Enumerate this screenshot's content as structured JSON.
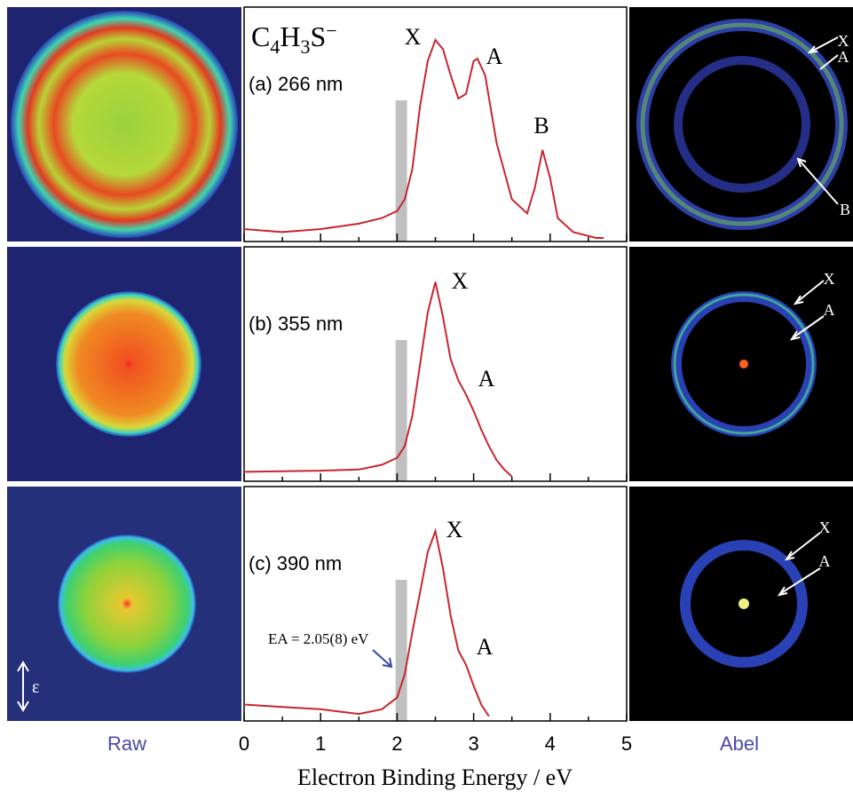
{
  "title_parts": [
    "C",
    "4",
    "H",
    "3",
    "S",
    "−"
  ],
  "raw_label": "Raw",
  "abel_label": "Abel",
  "x_label": "Electron Binding Energy / eV",
  "ea_annotation": "EA = 2.05(8) eV",
  "polarization_label": "ε",
  "chart_data": [
    {
      "type": "line",
      "title": "(a) 266 nm",
      "color": "#c8262c",
      "xlim": [
        0,
        5
      ],
      "ylim": [
        0,
        1
      ],
      "xticks": [
        0,
        1,
        2,
        3,
        4,
        5
      ],
      "minor_xticks": [
        0.5,
        1.5,
        2.5,
        3.5,
        4.5
      ],
      "band": [
        1.98,
        2.13
      ],
      "x": [
        0,
        0.5,
        1.0,
        1.5,
        1.8,
        2.0,
        2.1,
        2.2,
        2.3,
        2.4,
        2.5,
        2.6,
        2.7,
        2.8,
        2.9,
        3.0,
        3.05,
        3.15,
        3.3,
        3.5,
        3.7,
        3.8,
        3.9,
        4.0,
        4.1,
        4.3,
        4.6,
        4.7
      ],
      "values": [
        0.053,
        0.04,
        0.053,
        0.076,
        0.1,
        0.13,
        0.18,
        0.31,
        0.58,
        0.77,
        0.86,
        0.82,
        0.71,
        0.61,
        0.63,
        0.77,
        0.78,
        0.71,
        0.42,
        0.18,
        0.12,
        0.23,
        0.39,
        0.27,
        0.1,
        0.04,
        0.015,
        0.015
      ],
      "peak_labels": [
        "X",
        "A",
        "B"
      ],
      "image_labels": [
        "X",
        "A",
        "B"
      ]
    },
    {
      "type": "line",
      "title": "(b) 355 nm",
      "color": "#c8262c",
      "xlim": [
        0,
        5
      ],
      "ylim": [
        0,
        1
      ],
      "xticks": [
        0,
        1,
        2,
        3,
        4,
        5
      ],
      "minor_xticks": [
        0.5,
        1.5,
        2.5,
        3.5,
        4.5
      ],
      "band": [
        1.98,
        2.13
      ],
      "x": [
        0,
        1.0,
        1.5,
        1.8,
        2.0,
        2.1,
        2.2,
        2.3,
        2.4,
        2.5,
        2.6,
        2.7,
        2.8,
        2.9,
        3.0,
        3.1,
        3.2,
        3.3,
        3.4,
        3.5
      ],
      "values": [
        0.04,
        0.045,
        0.05,
        0.07,
        0.1,
        0.15,
        0.28,
        0.5,
        0.72,
        0.85,
        0.7,
        0.52,
        0.43,
        0.37,
        0.3,
        0.22,
        0.15,
        0.09,
        0.05,
        0.02
      ],
      "peak_labels": [
        "X",
        "A"
      ],
      "image_labels": [
        "X",
        "A"
      ]
    },
    {
      "type": "line",
      "title": "(c) 390 nm",
      "color": "#c8262c",
      "xlim": [
        0,
        5
      ],
      "ylim": [
        0,
        1
      ],
      "xticks": [
        0,
        1,
        2,
        3,
        4,
        5
      ],
      "minor_xticks": [
        0.5,
        1.5,
        2.5,
        3.5,
        4.5
      ],
      "band": [
        1.98,
        2.13
      ],
      "x": [
        0,
        0.5,
        1.0,
        1.5,
        1.8,
        2.0,
        2.1,
        2.2,
        2.3,
        2.4,
        2.5,
        2.6,
        2.7,
        2.8,
        2.9,
        3.0,
        3.1,
        3.2
      ],
      "values": [
        0.07,
        0.06,
        0.05,
        0.03,
        0.05,
        0.1,
        0.2,
        0.38,
        0.55,
        0.72,
        0.81,
        0.65,
        0.45,
        0.3,
        0.24,
        0.15,
        0.07,
        0.02
      ],
      "peak_labels": [
        "X",
        "A"
      ],
      "image_labels": [
        "X",
        "A"
      ]
    }
  ]
}
